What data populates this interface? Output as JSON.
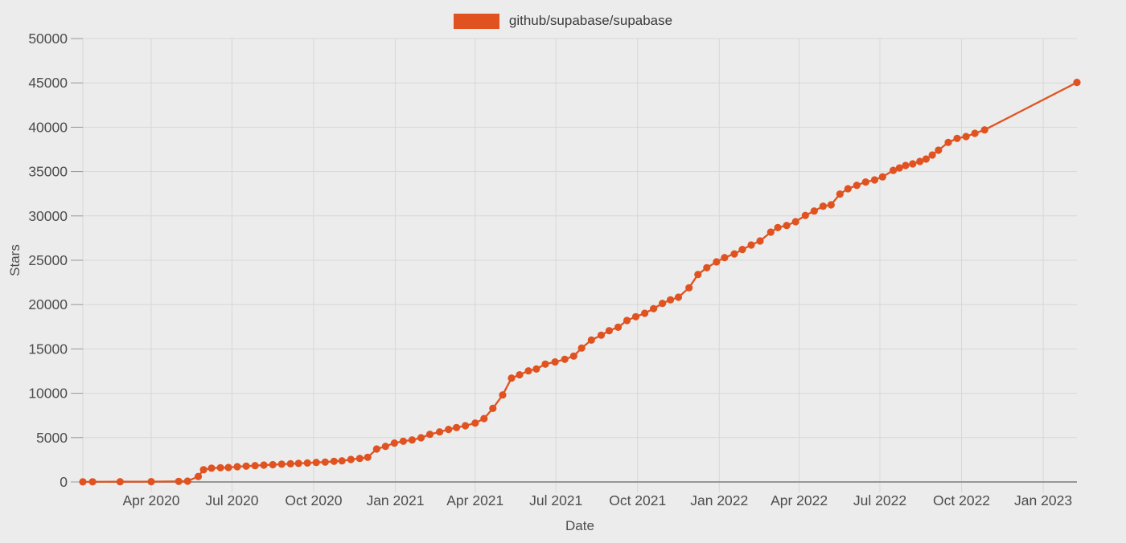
{
  "colors": {
    "background": "#ececec",
    "grid": "#d7d7d7",
    "axis": "#979797",
    "tick_text": "#4d4d4d",
    "legend_text": "#3a3a3a",
    "series": "#e05320"
  },
  "chart_data": {
    "type": "line",
    "legend": {
      "label": "github/supabase/supabase",
      "position": "top-center"
    },
    "xlabel": "Date",
    "ylabel": "Stars",
    "grid": true,
    "x_range": [
      "2020-01-15",
      "2023-02-08"
    ],
    "y_range": [
      0,
      50000
    ],
    "x_ticks": [
      {
        "label": "Apr 2020",
        "date": "2020-04-01"
      },
      {
        "label": "Jul 2020",
        "date": "2020-07-01"
      },
      {
        "label": "Oct 2020",
        "date": "2020-10-01"
      },
      {
        "label": "Jan 2021",
        "date": "2021-01-01"
      },
      {
        "label": "Apr 2021",
        "date": "2021-04-01"
      },
      {
        "label": "Jul 2021",
        "date": "2021-07-01"
      },
      {
        "label": "Oct 2021",
        "date": "2021-10-01"
      },
      {
        "label": "Jan 2022",
        "date": "2022-01-01"
      },
      {
        "label": "Apr 2022",
        "date": "2022-04-01"
      },
      {
        "label": "Jul 2022",
        "date": "2022-07-01"
      },
      {
        "label": "Oct 2022",
        "date": "2022-10-01"
      },
      {
        "label": "Jan 2023",
        "date": "2023-01-01"
      }
    ],
    "y_ticks": [
      {
        "label": "0",
        "value": 0
      },
      {
        "label": "5000",
        "value": 5000
      },
      {
        "label": "10000",
        "value": 10000
      },
      {
        "label": "15000",
        "value": 15000
      },
      {
        "label": "20000",
        "value": 20000
      },
      {
        "label": "25000",
        "value": 25000
      },
      {
        "label": "30000",
        "value": 30000
      },
      {
        "label": "35000",
        "value": 35000
      },
      {
        "label": "40000",
        "value": 40000
      },
      {
        "label": "45000",
        "value": 45000
      },
      {
        "label": "50000",
        "value": 50000
      }
    ],
    "series": [
      {
        "name": "github/supabase/supabase",
        "color": "#e05320",
        "marker": "circle",
        "points": [
          [
            "2020-01-15",
            10
          ],
          [
            "2020-01-26",
            15
          ],
          [
            "2020-02-26",
            25
          ],
          [
            "2020-04-01",
            40
          ],
          [
            "2020-05-02",
            65
          ],
          [
            "2020-05-12",
            95
          ],
          [
            "2020-05-24",
            620
          ],
          [
            "2020-05-30",
            1380
          ],
          [
            "2020-06-08",
            1550
          ],
          [
            "2020-06-18",
            1600
          ],
          [
            "2020-06-27",
            1630
          ],
          [
            "2020-07-07",
            1720
          ],
          [
            "2020-07-17",
            1780
          ],
          [
            "2020-07-27",
            1840
          ],
          [
            "2020-08-06",
            1900
          ],
          [
            "2020-08-16",
            1950
          ],
          [
            "2020-08-26",
            2000
          ],
          [
            "2020-09-05",
            2050
          ],
          [
            "2020-09-14",
            2090
          ],
          [
            "2020-09-24",
            2140
          ],
          [
            "2020-10-04",
            2200
          ],
          [
            "2020-10-14",
            2240
          ],
          [
            "2020-10-24",
            2330
          ],
          [
            "2020-11-02",
            2380
          ],
          [
            "2020-11-12",
            2540
          ],
          [
            "2020-11-22",
            2650
          ],
          [
            "2020-12-01",
            2780
          ],
          [
            "2020-12-11",
            3710
          ],
          [
            "2020-12-21",
            4010
          ],
          [
            "2020-12-31",
            4380
          ],
          [
            "2021-01-10",
            4590
          ],
          [
            "2021-01-20",
            4740
          ],
          [
            "2021-01-30",
            4980
          ],
          [
            "2021-02-09",
            5370
          ],
          [
            "2021-02-20",
            5640
          ],
          [
            "2021-03-02",
            5920
          ],
          [
            "2021-03-11",
            6130
          ],
          [
            "2021-03-21",
            6340
          ],
          [
            "2021-04-01",
            6640
          ],
          [
            "2021-04-11",
            7150
          ],
          [
            "2021-04-21",
            8300
          ],
          [
            "2021-05-02",
            9810
          ],
          [
            "2021-05-12",
            11710
          ],
          [
            "2021-05-21",
            12080
          ],
          [
            "2021-05-31",
            12530
          ],
          [
            "2021-06-09",
            12740
          ],
          [
            "2021-06-19",
            13290
          ],
          [
            "2021-06-30",
            13530
          ],
          [
            "2021-07-11",
            13830
          ],
          [
            "2021-07-21",
            14190
          ],
          [
            "2021-07-30",
            15100
          ],
          [
            "2021-08-10",
            16000
          ],
          [
            "2021-08-21",
            16550
          ],
          [
            "2021-08-30",
            17060
          ],
          [
            "2021-09-09",
            17450
          ],
          [
            "2021-09-19",
            18210
          ],
          [
            "2021-09-29",
            18630
          ],
          [
            "2021-10-09",
            19020
          ],
          [
            "2021-10-19",
            19540
          ],
          [
            "2021-10-29",
            20140
          ],
          [
            "2021-11-07",
            20530
          ],
          [
            "2021-11-16",
            20830
          ],
          [
            "2021-11-28",
            21890
          ],
          [
            "2021-12-08",
            23400
          ],
          [
            "2021-12-18",
            24160
          ],
          [
            "2021-12-29",
            24820
          ],
          [
            "2022-01-07",
            25300
          ],
          [
            "2022-01-18",
            25720
          ],
          [
            "2022-01-27",
            26210
          ],
          [
            "2022-02-06",
            26720
          ],
          [
            "2022-02-16",
            27170
          ],
          [
            "2022-02-28",
            28170
          ],
          [
            "2022-03-08",
            28690
          ],
          [
            "2022-03-18",
            28920
          ],
          [
            "2022-03-28",
            29350
          ],
          [
            "2022-04-08",
            30050
          ],
          [
            "2022-04-18",
            30550
          ],
          [
            "2022-04-28",
            31100
          ],
          [
            "2022-05-07",
            31250
          ],
          [
            "2022-05-17",
            32460
          ],
          [
            "2022-05-26",
            33060
          ],
          [
            "2022-06-05",
            33450
          ],
          [
            "2022-06-15",
            33820
          ],
          [
            "2022-06-25",
            34060
          ],
          [
            "2022-07-04",
            34400
          ],
          [
            "2022-07-16",
            35140
          ],
          [
            "2022-07-23",
            35410
          ],
          [
            "2022-07-30",
            35690
          ],
          [
            "2022-08-07",
            35870
          ],
          [
            "2022-08-15",
            36140
          ],
          [
            "2022-08-22",
            36410
          ],
          [
            "2022-08-29",
            36870
          ],
          [
            "2022-09-05",
            37410
          ],
          [
            "2022-09-16",
            38290
          ],
          [
            "2022-09-26",
            38740
          ],
          [
            "2022-10-06",
            38950
          ],
          [
            "2022-10-16",
            39310
          ],
          [
            "2022-10-27",
            39700
          ],
          [
            "2023-02-08",
            45050
          ]
        ]
      }
    ]
  }
}
